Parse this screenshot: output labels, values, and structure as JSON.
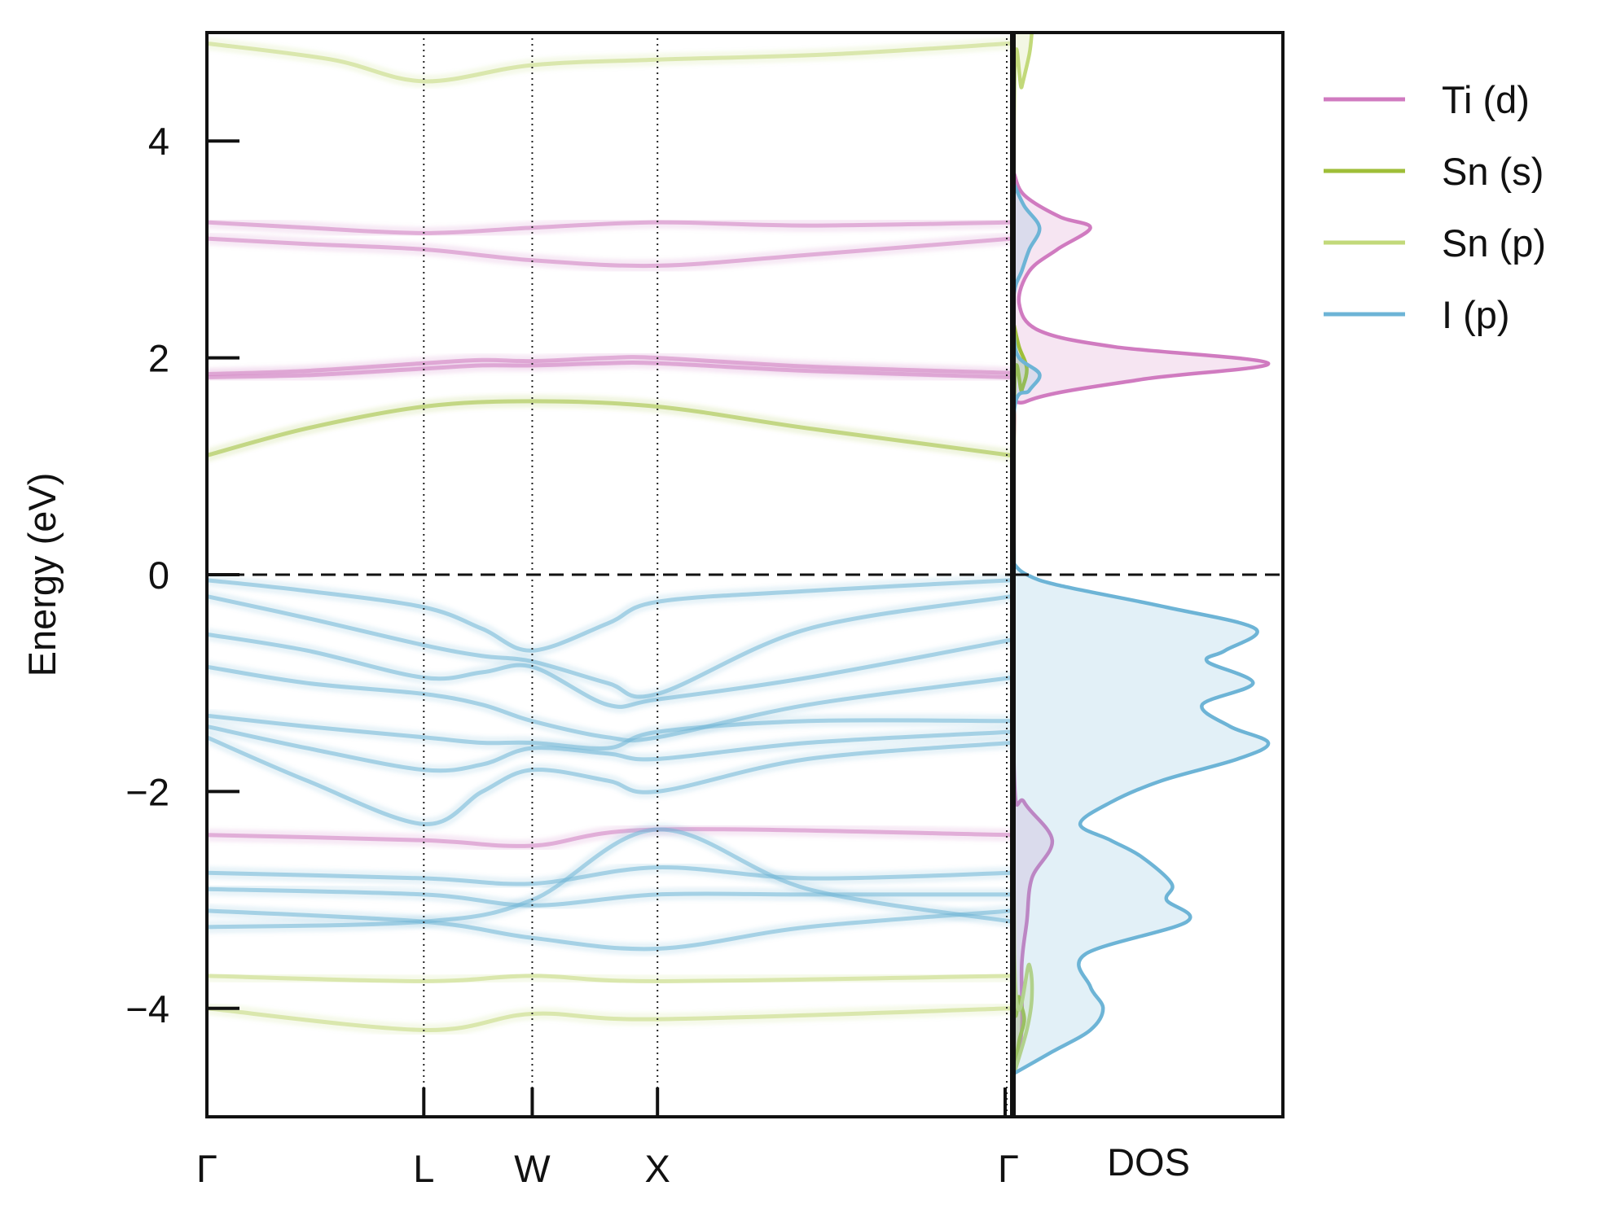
{
  "chart_data": [
    {
      "type": "line",
      "panel": "band-structure",
      "ylabel": "Energy (eV)",
      "ylim": [
        -5.0,
        5.0
      ],
      "yticks": [
        -4,
        -2,
        0,
        2,
        4
      ],
      "ytick_labels": [
        "−4",
        "−2",
        "0",
        "2",
        "4"
      ],
      "kpath_labels": [
        "Γ",
        "L",
        "W",
        "X",
        "Γ"
      ],
      "kpath_positions": [
        0.0,
        0.866,
        1.299,
        1.799,
        3.213
      ],
      "fermi_level": 0,
      "grid": false,
      "series": [
        {
          "name": "Ti (d)",
          "color": "#d07bc0",
          "bands": [
            {
              "x": [
                0,
                0.4,
                0.866,
                1.1,
                1.299,
                1.6,
                1.799,
                2.4,
                3.213
              ],
              "y": [
                1.82,
                1.84,
                1.9,
                1.93,
                1.93,
                1.95,
                1.95,
                1.88,
                1.82
              ]
            },
            {
              "x": [
                0,
                0.4,
                0.866,
                1.1,
                1.299,
                1.6,
                1.799,
                2.4,
                3.213
              ],
              "y": [
                1.85,
                1.88,
                1.95,
                1.98,
                1.97,
                2.0,
                2.0,
                1.92,
                1.86
              ]
            },
            {
              "x": [
                0,
                0.4,
                0.866,
                1.299,
                1.799,
                2.4,
                3.213
              ],
              "y": [
                3.25,
                3.2,
                3.15,
                3.2,
                3.25,
                3.22,
                3.25
              ]
            },
            {
              "x": [
                0,
                0.4,
                0.866,
                1.299,
                1.799,
                2.4,
                3.213
              ],
              "y": [
                3.1,
                3.05,
                3.0,
                2.9,
                2.85,
                2.95,
                3.1
              ]
            },
            {
              "x": [
                0,
                0.866,
                1.299,
                1.799,
                3.213
              ],
              "y": [
                -2.4,
                -2.45,
                -2.5,
                -2.35,
                -2.4
              ]
            }
          ]
        },
        {
          "name": "Sn (s)",
          "color": "#9fbe38",
          "bands": [
            {
              "x": [
                0,
                0.4,
                0.866,
                1.299,
                1.799,
                2.4,
                3.213
              ],
              "y": [
                1.1,
                1.35,
                1.55,
                1.6,
                1.55,
                1.35,
                1.1
              ]
            }
          ]
        },
        {
          "name": "Sn (p)",
          "color": "#c2d97a",
          "bands": [
            {
              "x": [
                0,
                0.5,
                0.866,
                1.299,
                1.799,
                2.5,
                3.213
              ],
              "y": [
                4.9,
                4.75,
                4.55,
                4.7,
                4.75,
                4.8,
                4.9
              ]
            },
            {
              "x": [
                0,
                0.866,
                1.299,
                1.799,
                3.213
              ],
              "y": [
                -3.7,
                -3.75,
                -3.7,
                -3.75,
                -3.7
              ]
            },
            {
              "x": [
                0,
                0.866,
                1.299,
                1.799,
                3.213
              ],
              "y": [
                -4.0,
                -4.2,
                -4.05,
                -4.1,
                -4.0
              ]
            }
          ]
        },
        {
          "name": "I (p)",
          "color": "#6db4d6",
          "bands": [
            {
              "x": [
                0,
                0.4,
                0.866,
                1.1,
                1.299,
                1.6,
                1.799,
                2.4,
                3.213
              ],
              "y": [
                -0.05,
                -0.15,
                -0.3,
                -0.5,
                -0.7,
                -0.45,
                -0.25,
                -0.15,
                -0.05
              ]
            },
            {
              "x": [
                0,
                0.4,
                0.866,
                1.1,
                1.299,
                1.6,
                1.799,
                2.4,
                3.213
              ],
              "y": [
                -0.2,
                -0.4,
                -0.65,
                -0.75,
                -0.8,
                -1.0,
                -1.1,
                -0.5,
                -0.2
              ]
            },
            {
              "x": [
                0,
                0.4,
                0.866,
                1.1,
                1.299,
                1.6,
                1.799,
                2.4,
                3.213
              ],
              "y": [
                -0.55,
                -0.7,
                -0.95,
                -0.9,
                -0.85,
                -1.2,
                -1.15,
                -0.95,
                -0.6
              ]
            },
            {
              "x": [
                0,
                0.4,
                0.866,
                1.1,
                1.299,
                1.6,
                1.799,
                2.4,
                3.213
              ],
              "y": [
                -0.85,
                -1.0,
                -1.1,
                -1.2,
                -1.35,
                -1.5,
                -1.5,
                -1.2,
                -0.95
              ]
            },
            {
              "x": [
                0,
                0.4,
                0.866,
                1.1,
                1.299,
                1.6,
                1.799,
                2.4,
                3.213
              ],
              "y": [
                -1.3,
                -1.4,
                -1.5,
                -1.55,
                -1.55,
                -1.6,
                -1.45,
                -1.35,
                -1.35
              ]
            },
            {
              "x": [
                0,
                0.4,
                0.866,
                1.1,
                1.299,
                1.6,
                1.799,
                2.4,
                3.213
              ],
              "y": [
                -1.4,
                -1.6,
                -1.8,
                -1.75,
                -1.6,
                -1.65,
                -1.7,
                -1.55,
                -1.45
              ]
            },
            {
              "x": [
                0,
                0.4,
                0.866,
                1.1,
                1.299,
                1.6,
                1.799,
                2.4,
                3.213
              ],
              "y": [
                -1.5,
                -1.9,
                -2.3,
                -2.0,
                -1.8,
                -1.9,
                -2.0,
                -1.7,
                -1.55
              ]
            },
            {
              "x": [
                0,
                0.866,
                1.299,
                1.799,
                2.4,
                3.213
              ],
              "y": [
                -2.75,
                -2.8,
                -2.85,
                -2.7,
                -2.8,
                -2.75
              ]
            },
            {
              "x": [
                0,
                0.866,
                1.299,
                1.799,
                2.4,
                3.213
              ],
              "y": [
                -2.9,
                -2.95,
                -3.05,
                -2.95,
                -2.95,
                -2.95
              ]
            },
            {
              "x": [
                0,
                0.866,
                1.299,
                1.799,
                2.4,
                3.213
              ],
              "y": [
                -3.1,
                -3.2,
                -3.35,
                -3.45,
                -3.25,
                -3.1
              ]
            },
            {
              "x": [
                0,
                0.866,
                1.299,
                1.799,
                2.4,
                3.213
              ],
              "y": [
                -3.25,
                -3.2,
                -3.0,
                -2.35,
                -2.9,
                -3.2
              ]
            }
          ]
        }
      ]
    },
    {
      "type": "area",
      "panel": "dos",
      "xlabel": "DOS",
      "ylim": [
        -5.0,
        5.0
      ],
      "legend_position": "top-right, outside",
      "series": [
        {
          "name": "Ti (d)",
          "color": "#d07bc0",
          "energy": [
            -4.6,
            -4.2,
            -3.6,
            -3.2,
            -2.8,
            -2.45,
            -2.1,
            -1.8,
            1.3,
            1.6,
            1.8,
            1.95,
            2.1,
            2.25,
            2.5,
            2.8,
            3.0,
            3.2,
            3.3,
            3.5,
            3.7
          ],
          "dos": [
            0.0,
            0.03,
            0.03,
            0.05,
            0.07,
            0.15,
            0.04,
            0.0,
            0.0,
            0.05,
            0.5,
            1.0,
            0.4,
            0.1,
            0.02,
            0.06,
            0.17,
            0.3,
            0.18,
            0.04,
            0.0
          ]
        },
        {
          "name": "Sn (s)",
          "color": "#9fbe38",
          "energy": [
            -4.6,
            -4.3,
            -4.1,
            -3.9,
            -3.6,
            1.5,
            1.7,
            1.9,
            2.1,
            2.3
          ],
          "dos": [
            0.0,
            0.02,
            0.04,
            0.02,
            0.0,
            0.0,
            0.03,
            0.05,
            0.02,
            0.0
          ]
        },
        {
          "name": "Sn (p)",
          "color": "#c2d97a",
          "energy": [
            -4.6,
            -4.2,
            -3.9,
            -3.6,
            -3.4,
            4.2,
            4.5,
            4.8,
            5.0
          ],
          "dos": [
            0.0,
            0.05,
            0.07,
            0.06,
            0.0,
            0.0,
            0.03,
            0.06,
            0.07
          ]
        },
        {
          "name": "I (p)",
          "color": "#6db4d6",
          "energy": [
            -4.6,
            -4.4,
            -4.2,
            -4.0,
            -3.8,
            -3.5,
            -3.2,
            -3.0,
            -2.85,
            -2.6,
            -2.45,
            -2.3,
            -2.1,
            -1.9,
            -1.7,
            -1.55,
            -1.4,
            -1.2,
            -1.0,
            -0.8,
            -0.7,
            -0.5,
            -0.3,
            -0.1,
            0.0,
            0.1,
            0.15,
            1.5,
            1.7,
            1.85,
            2.0,
            2.2,
            2.6,
            2.8,
            3.0,
            3.2,
            3.4,
            3.6
          ],
          "dos": [
            0.0,
            0.15,
            0.3,
            0.35,
            0.3,
            0.28,
            0.68,
            0.6,
            0.62,
            0.5,
            0.38,
            0.26,
            0.38,
            0.58,
            0.88,
            1.0,
            0.85,
            0.74,
            0.94,
            0.76,
            0.83,
            0.95,
            0.6,
            0.18,
            0.05,
            0.0,
            0.0,
            0.0,
            0.06,
            0.1,
            0.02,
            0.0,
            0.0,
            0.03,
            0.06,
            0.1,
            0.04,
            0.0
          ]
        }
      ]
    }
  ]
}
